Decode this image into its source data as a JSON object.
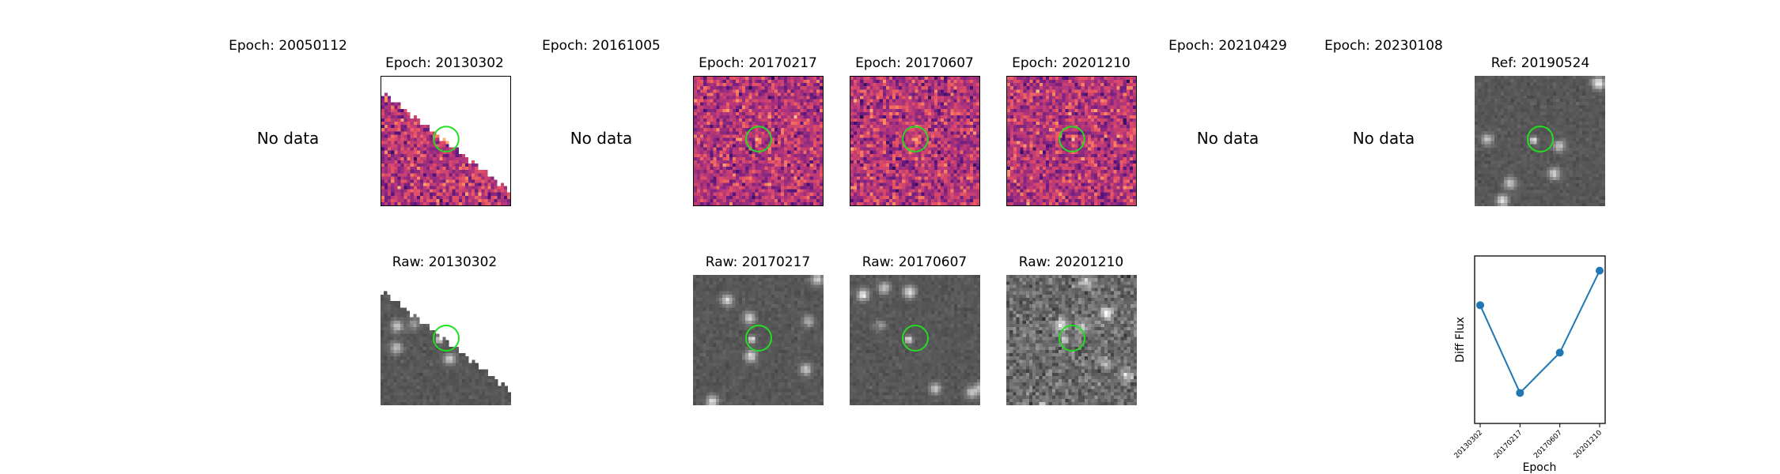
{
  "no_data_text": "No data",
  "epochs": [
    {
      "title": "Epoch: 20050112",
      "has_data": false
    },
    {
      "title": "Epoch: 20130302",
      "has_data": true,
      "raw_title": "Raw: 20130302",
      "mask": "diagonal"
    },
    {
      "title": "Epoch: 20161005",
      "has_data": false
    },
    {
      "title": "Epoch: 20170217",
      "has_data": true,
      "raw_title": "Raw: 20170217"
    },
    {
      "title": "Epoch: 20170607",
      "has_data": true,
      "raw_title": "Raw: 20170607"
    },
    {
      "title": "Epoch: 20201210",
      "has_data": true,
      "raw_title": "Raw: 20201210"
    },
    {
      "title": "Epoch: 20210429",
      "has_data": false
    },
    {
      "title": "Epoch: 20230108",
      "has_data": false
    }
  ],
  "reference": {
    "title": "Ref: 20190524"
  },
  "colors": {
    "diff_colormap": "magma",
    "raw_colormap": "gray",
    "marker_circle": "#22dd22",
    "series_line": "#1f77b4"
  },
  "chart_data": {
    "type": "line",
    "xlabel": "Epoch",
    "ylabel": "Diff Flux",
    "categories": [
      "20130302",
      "20170217",
      "20170607",
      "20201210"
    ],
    "values": [
      0.74,
      0.13,
      0.41,
      0.98
    ],
    "yticks_shown": false,
    "marker": "circle"
  }
}
